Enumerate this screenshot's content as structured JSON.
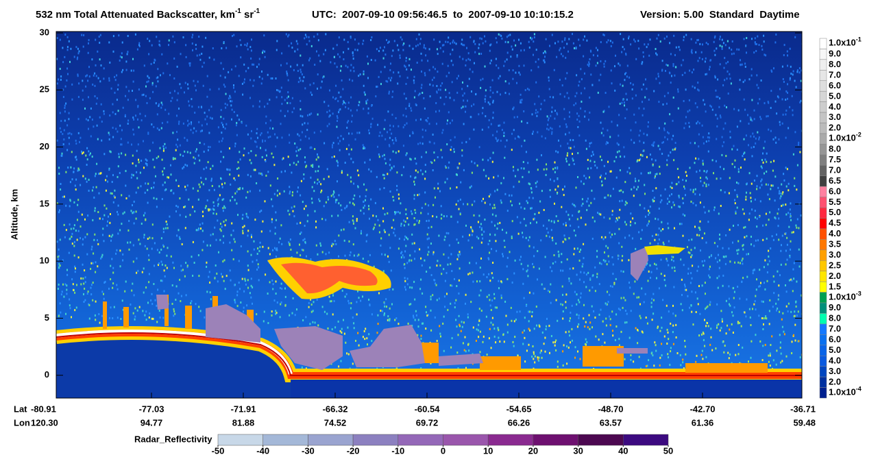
{
  "chart_data": {
    "type": "heatmap",
    "title": [
      {
        "text": "532 nm Total Attenuated Backscatter, km"
      },
      {
        "sup": "-1"
      },
      {
        "text": " sr"
      },
      {
        "sup": "-1"
      }
    ],
    "subtitle": "UTC:  2007-09-10 09:56:46.5  to  2007-09-10 10:10:15.2",
    "version": "Version: 5.00  Standard  Daytime",
    "ylabel": "Altitude, km",
    "ylim": [
      -2,
      30
    ],
    "yticks": [
      0,
      5,
      10,
      15,
      20,
      25,
      30
    ],
    "x_rows": [
      {
        "name": "Lat",
        "labels": [
          "-80.91",
          "-77.03",
          "-71.91",
          "-66.32",
          "-60.54",
          "-54.65",
          "-48.70",
          "-42.70",
          "-36.71"
        ]
      },
      {
        "name": "Lon",
        "labels": [
          "120.30",
          "94.77",
          "81.88",
          "74.52",
          "69.72",
          "66.26",
          "63.57",
          "61.36",
          "59.48"
        ]
      }
    ],
    "colorbar": {
      "labels": [
        {
          "base": "1.0x10",
          "exp": "-1"
        },
        "9.0",
        "8.0",
        "7.0",
        "6.0",
        "5.0",
        "4.0",
        "3.0",
        "2.0",
        {
          "base": "1.0x10",
          "exp": "-2"
        },
        "8.0",
        "7.5",
        "7.0",
        "6.5",
        "6.0",
        "5.5",
        "5.0",
        "4.5",
        "4.0",
        "3.5",
        "3.0",
        "2.5",
        "2.0",
        "1.5",
        {
          "base": "1.0x10",
          "exp": "-3"
        },
        "9.0",
        "8.0",
        "7.0",
        "6.0",
        "5.0",
        "4.0",
        "3.0",
        "2.0",
        {
          "base": "1.0x10",
          "exp": "-4"
        }
      ],
      "colors": [
        "#ffffff",
        "#f7f7f7",
        "#efefef",
        "#e6e6e6",
        "#dedede",
        "#d6d6d6",
        "#cdcdcd",
        "#c4c4c4",
        "#bbbbbb",
        "#aaaaaa",
        "#969696",
        "#7f7f7f",
        "#636363",
        "#404040",
        "#ff80a0",
        "#ff5070",
        "#ff2840",
        "#ff0000",
        "#ff5000",
        "#ff7800",
        "#ffa000",
        "#ffc800",
        "#ffe600",
        "#ffff00",
        "#00a050",
        "#00907a",
        "#00ffb0",
        "#1478ff",
        "#0a70f0",
        "#0a64e8",
        "#0a5ae0",
        "#0046c0",
        "#0030a0",
        "#002090"
      ]
    },
    "radar_colorbar": {
      "label": "Radar_Reflectivity",
      "ticks": [
        -50,
        -40,
        -30,
        -20,
        -10,
        0,
        10,
        20,
        30,
        40,
        50
      ],
      "colors": [
        "#c8d8e8",
        "#a4b8d8",
        "#9aa4d0",
        "#8c80c0",
        "#9468b8",
        "#9a56ac",
        "#8a2a90",
        "#6e1070",
        "#4c0850",
        "#3c0a80"
      ]
    }
  }
}
